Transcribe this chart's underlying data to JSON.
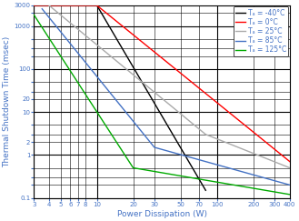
{
  "title": "",
  "xlabel": "Power Dissipation (W)",
  "ylabel": "Thermal Shutdown Time (msec)",
  "xlim": [
    3,
    400
  ],
  "ylim": [
    0.1,
    3000
  ],
  "lines": [
    {
      "label": "Tₐ = -40°C",
      "color": "#000000",
      "x": [
        3,
        10,
        80
      ],
      "y": [
        3000,
        3000,
        0.15
      ],
      "style": "-",
      "lw": 1.0
    },
    {
      "label": "Tₐ = 0°C",
      "color": "#ff0000",
      "x": [
        3,
        10,
        400
      ],
      "y": [
        3000,
        3000,
        0.7
      ],
      "style": "-",
      "lw": 1.0
    },
    {
      "label": "Tₐ = 25°C",
      "color": "#aaaaaa",
      "x": [
        4,
        80,
        400
      ],
      "y": [
        3000,
        3.0,
        0.5
      ],
      "style": "-",
      "lw": 1.0
    },
    {
      "label": "Tₐ = 85°C",
      "color": "#4472c4",
      "x": [
        3.5,
        30,
        400
      ],
      "y": [
        2500,
        1.5,
        0.2
      ],
      "style": "-",
      "lw": 1.0
    },
    {
      "label": "Tₐ = 125°C",
      "color": "#00aa00",
      "x": [
        3,
        20,
        400
      ],
      "y": [
        1800,
        0.5,
        0.12
      ],
      "style": "-",
      "lw": 1.0
    }
  ],
  "legend_fontsize": 5.5,
  "axis_label_color": "#4472c4",
  "tick_color": "#4472c4",
  "grid_major_color": "#000000",
  "grid_minor_color": "#888888",
  "background_color": "#ffffff",
  "xticks_major": [
    3,
    10,
    100
  ],
  "xticks_all": [
    3,
    4,
    5,
    6,
    7,
    8,
    10,
    20,
    30,
    50,
    70,
    100,
    200,
    300,
    400
  ],
  "yticks_major": [
    0.1,
    1,
    10,
    100,
    1000
  ],
  "yticks_all": [
    0.1,
    0.2,
    0.3,
    0.5,
    1,
    2,
    3,
    5,
    10,
    20,
    30,
    50,
    100,
    200,
    300,
    500,
    1000,
    2000,
    3000
  ]
}
